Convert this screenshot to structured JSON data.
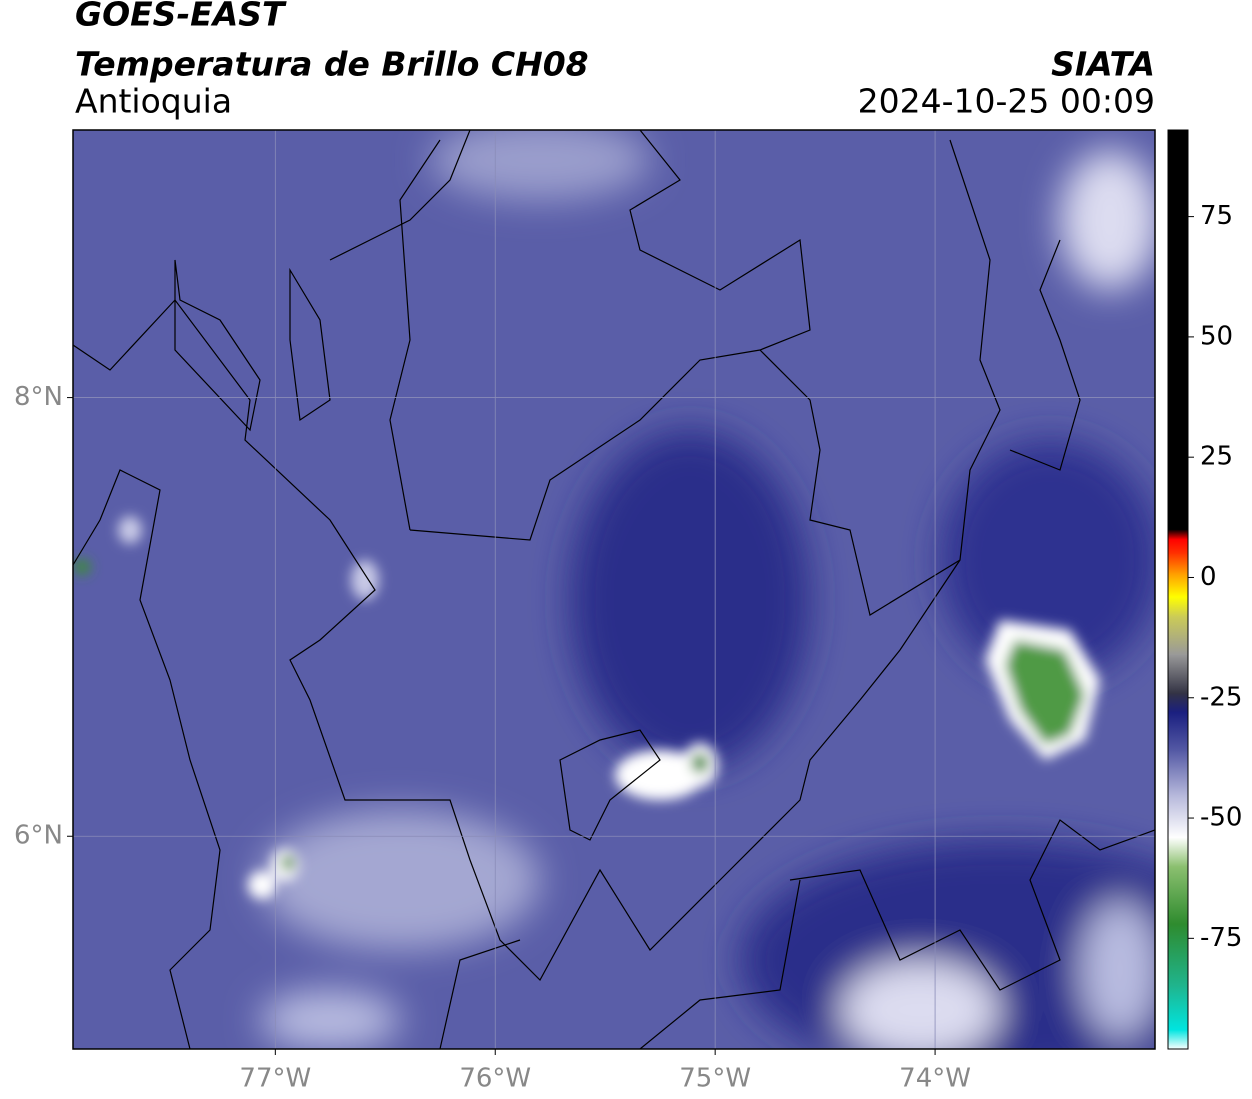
{
  "header": {
    "title": "GOES-EAST",
    "subtitle": "Temperatura de Brillo CH08",
    "region": "Antioquia",
    "source": "SIATA",
    "timestamp": "2024-10-25 00:09"
  },
  "map": {
    "xlim": [
      -77.92,
      -73.0
    ],
    "ylim": [
      5.03,
      9.22
    ],
    "xticks": [
      {
        "value": -77,
        "label": "77°W"
      },
      {
        "value": -76,
        "label": "76°W"
      },
      {
        "value": -75,
        "label": "75°W"
      },
      {
        "value": -74,
        "label": "74°W"
      }
    ],
    "yticks": [
      {
        "value": 8,
        "label": "8°N"
      },
      {
        "value": 6,
        "label": "6°N"
      }
    ],
    "grid": true
  },
  "colorbar": {
    "lim": [
      -98,
      93
    ],
    "ticks": [
      75,
      50,
      25,
      0,
      -25,
      -50,
      -75
    ],
    "colormap": [
      {
        "value": -98,
        "color": "#ffffff"
      },
      {
        "value": -94,
        "color": "#00e5e0"
      },
      {
        "value": -85,
        "color": "#1fb58f"
      },
      {
        "value": -72,
        "color": "#2e8b2e"
      },
      {
        "value": -60,
        "color": "#8cc070"
      },
      {
        "value": -54,
        "color": "#ffffff"
      },
      {
        "value": -45,
        "color": "#b4b6da"
      },
      {
        "value": -36,
        "color": "#555aa5"
      },
      {
        "value": -28,
        "color": "#1a1f80"
      },
      {
        "value": -24,
        "color": "#333344"
      },
      {
        "value": -16,
        "color": "#999999"
      },
      {
        "value": -8,
        "color": "#cccc55"
      },
      {
        "value": -4,
        "color": "#ffff00"
      },
      {
        "value": 1,
        "color": "#ff9900"
      },
      {
        "value": 5,
        "color": "#ff3300"
      },
      {
        "value": 8,
        "color": "#ff0000"
      },
      {
        "value": 10,
        "color": "#000000"
      },
      {
        "value": 93,
        "color": "#000000"
      }
    ]
  }
}
